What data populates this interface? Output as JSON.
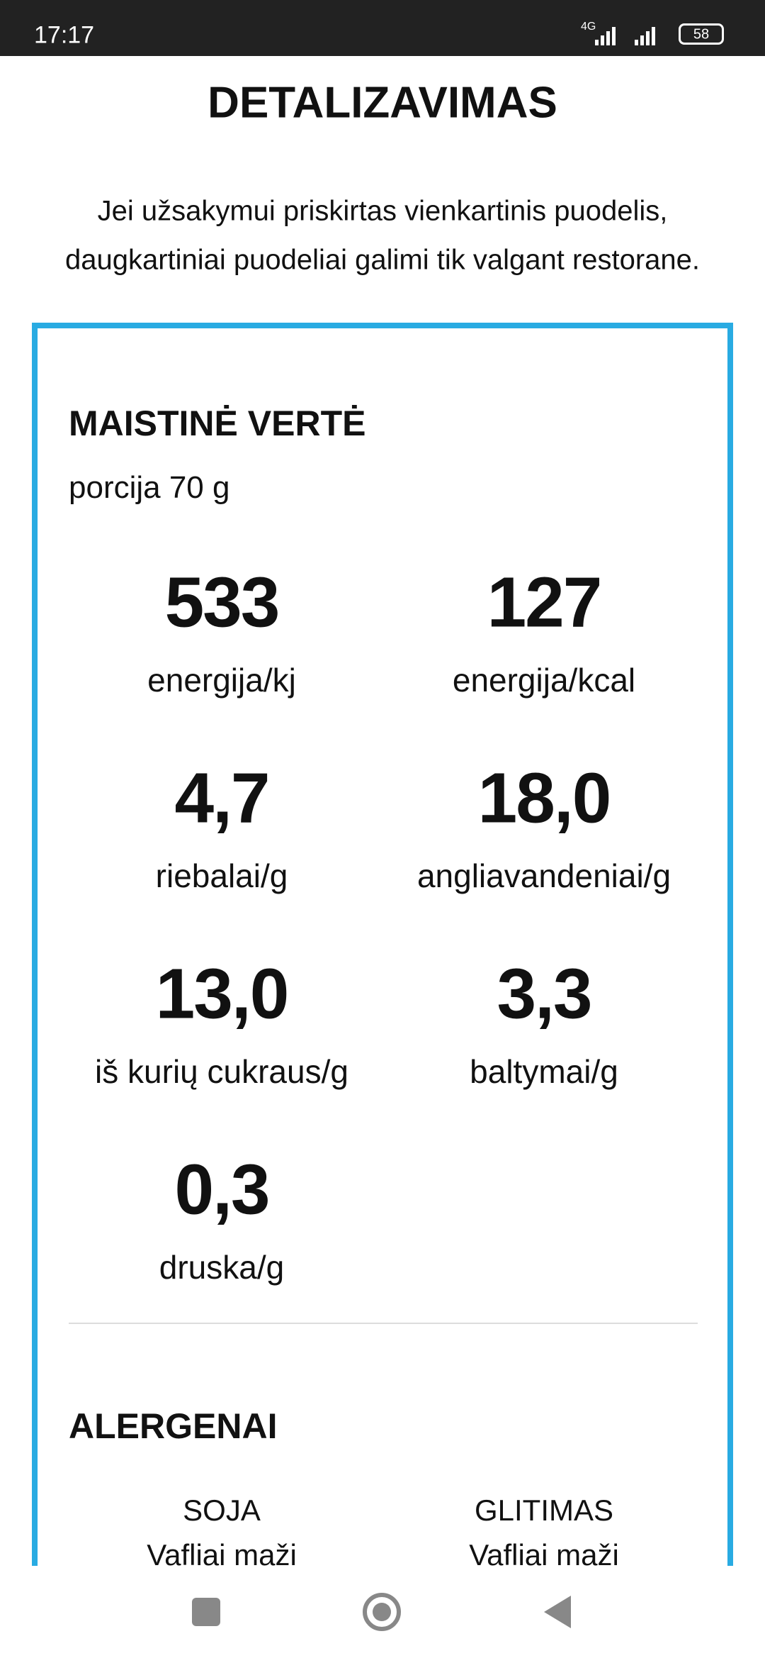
{
  "status_bar": {
    "time": "17:17",
    "network": "4G",
    "battery": "58"
  },
  "header": {
    "title": "DETALIZAVIMAS"
  },
  "notice": [
    "Jei užsakymui priskirtas vienkartinis puodelis,",
    "daugkartiniai puodeliai galimi tik valgant restorane."
  ],
  "nutrition": {
    "title": "MAISTINĖ VERTĖ",
    "portion": "porcija 70 g",
    "items": [
      {
        "value": "533",
        "label": "energija/kj"
      },
      {
        "value": "127",
        "label": "energija/kcal"
      },
      {
        "value": "4,7",
        "label": "riebalai/g"
      },
      {
        "value": "18,0",
        "label": "angliavandeniai/g"
      },
      {
        "value": "13,0",
        "label": "iš kurių cukraus/g"
      },
      {
        "value": "3,3",
        "label": "baltymai/g"
      },
      {
        "value": "0,3",
        "label": "druska/g"
      }
    ]
  },
  "allergens": {
    "title": "ALERGENAI",
    "items": [
      {
        "name": "SOJA",
        "description": "Vafliai maži"
      },
      {
        "name": "GLITIMAS",
        "description": "Vafliai maži"
      }
    ]
  }
}
